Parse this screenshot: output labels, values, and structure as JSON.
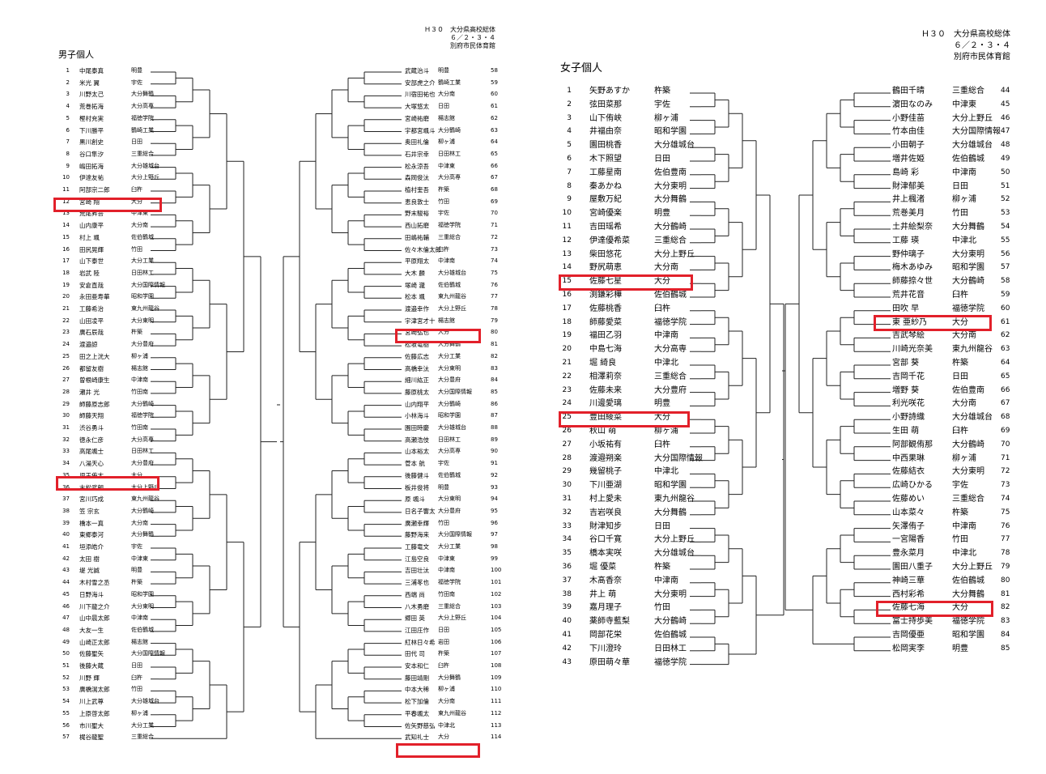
{
  "doc": {
    "header_left": [
      "Ｈ３０　大分県高校総体",
      "６／２・３・４",
      "別府市民体育館"
    ],
    "header_right": [
      "Ｈ３０　大分県高校総体",
      "６／２・３・４",
      "別府市民体育館"
    ],
    "men_title": "男子個人",
    "women_title": "女子個人"
  },
  "men": [
    {
      "n": "1",
      "name": "中尾泰真",
      "school": "明豊"
    },
    {
      "n": "2",
      "name": "米光 翼",
      "school": "宇佐"
    },
    {
      "n": "3",
      "name": "川野太己",
      "school": "大分舞鶴"
    },
    {
      "n": "4",
      "name": "荒巻拓海",
      "school": "大分高専"
    },
    {
      "n": "5",
      "name": "樫村充実",
      "school": "福徳学院"
    },
    {
      "n": "6",
      "name": "下川勝平",
      "school": "鶴崎工業"
    },
    {
      "n": "7",
      "name": "黒川創史",
      "school": "日田"
    },
    {
      "n": "8",
      "name": "谷口隼汐",
      "school": "三重総合"
    },
    {
      "n": "9",
      "name": "嶋田拓海",
      "school": "大分雄城台"
    },
    {
      "n": "10",
      "name": "伊達友祐",
      "school": "大分上野丘"
    },
    {
      "n": "11",
      "name": "阿部宗二郎",
      "school": "臼杵"
    },
    {
      "n": "12",
      "name": "宮崎 翔",
      "school": "大分"
    },
    {
      "n": "13",
      "name": "荒尾昇吾",
      "school": "中津東"
    },
    {
      "n": "14",
      "name": "山内康平",
      "school": "大分南"
    },
    {
      "n": "15",
      "name": "村上 颯",
      "school": "佐伯鶴城"
    },
    {
      "n": "16",
      "name": "田尻晃輝",
      "school": "竹田"
    },
    {
      "n": "17",
      "name": "山下泰世",
      "school": "大分工業"
    },
    {
      "n": "18",
      "name": "岩武 陸",
      "school": "日田林工"
    },
    {
      "n": "19",
      "name": "安倉直哉",
      "school": "大分国際情報"
    },
    {
      "n": "20",
      "name": "永田亜寿華",
      "school": "昭和学園"
    },
    {
      "n": "21",
      "name": "工藤希治",
      "school": "東九州龍谷"
    },
    {
      "n": "22",
      "name": "山田凌平",
      "school": "大分東明"
    },
    {
      "n": "23",
      "name": "廣石辰哉",
      "school": "杵築"
    },
    {
      "n": "24",
      "name": "渡邉諒",
      "school": "大分豊府"
    },
    {
      "n": "25",
      "name": "田之上洸大",
      "school": "柳ヶ浦"
    },
    {
      "n": "26",
      "name": "都留友樹",
      "school": "楊志館"
    },
    {
      "n": "27",
      "name": "曽根崎康生",
      "school": "中津南"
    },
    {
      "n": "28",
      "name": "瀬井 光",
      "school": "竹田南"
    },
    {
      "n": "29",
      "name": "師藤原志郎",
      "school": "大分鶴崎"
    },
    {
      "n": "30",
      "name": "師藤天翔",
      "school": "福徳学院"
    },
    {
      "n": "31",
      "name": "渋谷勇斗",
      "school": "竹田南"
    },
    {
      "n": "32",
      "name": "徳永仁彦",
      "school": "大分高専"
    },
    {
      "n": "33",
      "name": "高尾颯士",
      "school": "日田林工"
    },
    {
      "n": "34",
      "name": "八湯天心",
      "school": "大分豊府"
    },
    {
      "n": "35",
      "name": "児玉侑太",
      "school": "大分"
    },
    {
      "n": "36",
      "name": "末松武朗",
      "school": "大分上野丘"
    },
    {
      "n": "37",
      "name": "宮川巧成",
      "school": "東九州龍谷"
    },
    {
      "n": "38",
      "name": "笠 宗玄",
      "school": "大分鶴崎"
    },
    {
      "n": "39",
      "name": "橋本一真",
      "school": "大分南"
    },
    {
      "n": "40",
      "name": "東郷泰河",
      "school": "大分舞鶴"
    },
    {
      "n": "41",
      "name": "垣添皓介",
      "school": "宇佐"
    },
    {
      "n": "42",
      "name": "太田 樹",
      "school": "中津東"
    },
    {
      "n": "43",
      "name": "堤 光誠",
      "school": "明豊"
    },
    {
      "n": "44",
      "name": "木村雪之丞",
      "school": "杵築"
    },
    {
      "n": "45",
      "name": "日野海斗",
      "school": "昭和学園"
    },
    {
      "n": "46",
      "name": "川下龍之介",
      "school": "大分東明"
    },
    {
      "n": "47",
      "name": "山中晨太郎",
      "school": "中津南"
    },
    {
      "n": "48",
      "name": "大友一生",
      "school": "佐伯鶴城"
    },
    {
      "n": "49",
      "name": "山崎正太郎",
      "school": "楊志館"
    },
    {
      "n": "50",
      "name": "佐藤聖矢",
      "school": "大分国際情報"
    },
    {
      "n": "51",
      "name": "後藤大蔵",
      "school": "日田"
    },
    {
      "n": "52",
      "name": "川野 輝",
      "school": "臼杵"
    },
    {
      "n": "53",
      "name": "廣橋滉太郎",
      "school": "竹田"
    },
    {
      "n": "54",
      "name": "川上武尊",
      "school": "大分雄城台"
    },
    {
      "n": "55",
      "name": "上原啓太郎",
      "school": "柳ヶ浦"
    },
    {
      "n": "56",
      "name": "市川聖大",
      "school": "大分工業"
    },
    {
      "n": "57",
      "name": "梶谷龍聖",
      "school": "三重総合"
    },
    {
      "n": "58",
      "name": "武蔵治斗",
      "school": "明豊"
    },
    {
      "n": "59",
      "name": "安部虎之介",
      "school": "鶴崎工業"
    },
    {
      "n": "60",
      "name": "川宿田祐也",
      "school": "大分南"
    },
    {
      "n": "61",
      "name": "大塚悠太",
      "school": "日田"
    },
    {
      "n": "62",
      "name": "宮崎祐磨",
      "school": "楊志館"
    },
    {
      "n": "63",
      "name": "宇都宮颯斗",
      "school": "大分鶴崎"
    },
    {
      "n": "64",
      "name": "奥田礼倫",
      "school": "柳ヶ浦"
    },
    {
      "n": "65",
      "name": "石井宗幸",
      "school": "日田林工"
    },
    {
      "n": "66",
      "name": "松永涼吾",
      "school": "中津東"
    },
    {
      "n": "67",
      "name": "森岡俊汰",
      "school": "大分高専"
    },
    {
      "n": "68",
      "name": "植村奎吾",
      "school": "杵築"
    },
    {
      "n": "69",
      "name": "恵良敦士",
      "school": "竹田"
    },
    {
      "n": "70",
      "name": "野末駿裕",
      "school": "宇佐"
    },
    {
      "n": "71",
      "name": "西山拓磨",
      "school": "福徳学院"
    },
    {
      "n": "72",
      "name": "田嶋祐輔",
      "school": "三重総合"
    },
    {
      "n": "73",
      "name": "佐々木倫太郎",
      "school": "臼杵"
    },
    {
      "n": "74",
      "name": "平原翔太",
      "school": "中津南"
    },
    {
      "n": "75",
      "name": "大木 麟",
      "school": "大分雄城台"
    },
    {
      "n": "76",
      "name": "塚崎 瀧",
      "school": "佐伯鶴城"
    },
    {
      "n": "77",
      "name": "松本 颯",
      "school": "東九州龍谷"
    },
    {
      "n": "78",
      "name": "渡邉幸作",
      "school": "大分上野丘"
    },
    {
      "n": "79",
      "name": "宇津宮才十",
      "school": "楊志館"
    },
    {
      "n": "80",
      "name": "宮崎弘也",
      "school": "大分"
    },
    {
      "n": "81",
      "name": "松坂竜樹",
      "school": "大分舞鶴"
    },
    {
      "n": "82",
      "name": "佐藤広志",
      "school": "大分工業"
    },
    {
      "n": "83",
      "name": "高橋幸汰",
      "school": "大分東明"
    },
    {
      "n": "84",
      "name": "細川紘正",
      "school": "大分豊府"
    },
    {
      "n": "85",
      "name": "藤原桃太",
      "school": "大分国際情報"
    },
    {
      "n": "86",
      "name": "山内翔平",
      "school": "大分鶴崎"
    },
    {
      "n": "87",
      "name": "小林海斗",
      "school": "昭和学園"
    },
    {
      "n": "88",
      "name": "園田時慶",
      "school": "大分雄城台"
    },
    {
      "n": "89",
      "name": "高瀬浩伎",
      "school": "日田林工"
    },
    {
      "n": "90",
      "name": "山本裕太",
      "school": "大分高専"
    },
    {
      "n": "91",
      "name": "菅本 航",
      "school": "宇佐"
    },
    {
      "n": "92",
      "name": "後藤健斗",
      "school": "佐伯鶴城"
    },
    {
      "n": "93",
      "name": "板井俊将",
      "school": "明豊"
    },
    {
      "n": "94",
      "name": "原 颯斗",
      "school": "大分東明"
    },
    {
      "n": "95",
      "name": "日名子響太",
      "school": "大分豊府"
    },
    {
      "n": "96",
      "name": "廣瀬幸輝",
      "school": "竹田"
    },
    {
      "n": "97",
      "name": "藤野海来",
      "school": "大分国際情報"
    },
    {
      "n": "98",
      "name": "工藤竜文",
      "school": "大分工業"
    },
    {
      "n": "99",
      "name": "江島空良",
      "school": "中津東"
    },
    {
      "n": "100",
      "name": "吉田壮汰",
      "school": "中津南"
    },
    {
      "n": "101",
      "name": "三浦苳也",
      "school": "福徳学院"
    },
    {
      "n": "102",
      "name": "西端 尚",
      "school": "竹田南"
    },
    {
      "n": "103",
      "name": "八木勇磨",
      "school": "三重総合"
    },
    {
      "n": "104",
      "name": "郷田 英",
      "school": "大分上野丘"
    },
    {
      "n": "105",
      "name": "江田庄作",
      "school": "日田"
    },
    {
      "n": "106",
      "name": "紅林日々希",
      "school": "岩田"
    },
    {
      "n": "107",
      "name": "田代 司",
      "school": "杵築"
    },
    {
      "n": "108",
      "name": "安本和仁",
      "school": "臼杵"
    },
    {
      "n": "109",
      "name": "藤田靖剛",
      "school": "大分舞鶴"
    },
    {
      "n": "110",
      "name": "中本大稀",
      "school": "柳ヶ浦"
    },
    {
      "n": "111",
      "name": "松下加倫",
      "school": "大分南"
    },
    {
      "n": "112",
      "name": "平春颯太",
      "school": "東九州龍谷"
    },
    {
      "n": "113",
      "name": "佐矢野慈弘",
      "school": "中津北"
    },
    {
      "n": "114",
      "name": "武知礼士",
      "school": "大分"
    }
  ],
  "women": [
    {
      "n": "1",
      "name": "矢野あすか",
      "school": "杵築"
    },
    {
      "n": "2",
      "name": "弦田菜那",
      "school": "宇佐"
    },
    {
      "n": "3",
      "name": "山下侑峡",
      "school": "柳ヶ浦"
    },
    {
      "n": "4",
      "name": "井福由奈",
      "school": "昭和学園"
    },
    {
      "n": "5",
      "name": "園田桃香",
      "school": "大分雄城台"
    },
    {
      "n": "6",
      "name": "木下照望",
      "school": "日田"
    },
    {
      "n": "7",
      "name": "工藤星南",
      "school": "佐伯豊南"
    },
    {
      "n": "8",
      "name": "秦あかね",
      "school": "大分東明"
    },
    {
      "n": "9",
      "name": "屋敷万紀",
      "school": "大分舞鶴"
    },
    {
      "n": "10",
      "name": "宮崎優楽",
      "school": "明豊"
    },
    {
      "n": "11",
      "name": "吉田瑶希",
      "school": "大分鶴崎"
    },
    {
      "n": "12",
      "name": "伊達優希菜",
      "school": "三重総合"
    },
    {
      "n": "13",
      "name": "柴田悠花",
      "school": "大分上野丘"
    },
    {
      "n": "14",
      "name": "野尻萌恵",
      "school": "大分南"
    },
    {
      "n": "15",
      "name": "佐藤七星",
      "school": "大分"
    },
    {
      "n": "16",
      "name": "渕鎌彩樺",
      "school": "佐伯鶴城"
    },
    {
      "n": "17",
      "name": "佐藤桃香",
      "school": "臼杵"
    },
    {
      "n": "18",
      "name": "師藤愛菜",
      "school": "福徳学院"
    },
    {
      "n": "19",
      "name": "福田乙羽",
      "school": "中津南"
    },
    {
      "n": "20",
      "name": "中島七海",
      "school": "大分高専"
    },
    {
      "n": "21",
      "name": "堀 綺良",
      "school": "中津北"
    },
    {
      "n": "22",
      "name": "相澤莉奈",
      "school": "三重総合"
    },
    {
      "n": "23",
      "name": "佐藤未来",
      "school": "大分豊府"
    },
    {
      "n": "24",
      "name": "川邊愛璃",
      "school": "明豊"
    },
    {
      "n": "25",
      "name": "豊田綾菜",
      "school": "大分"
    },
    {
      "n": "26",
      "name": "秋山 萌",
      "school": "柳ヶ浦"
    },
    {
      "n": "27",
      "name": "小坂祐有",
      "school": "臼杵"
    },
    {
      "n": "28",
      "name": "渡邉朔楽",
      "school": "大分国際情報"
    },
    {
      "n": "29",
      "name": "幾留桃子",
      "school": "中津北"
    },
    {
      "n": "30",
      "name": "下川亜湖",
      "school": "昭和学園"
    },
    {
      "n": "31",
      "name": "村上愛未",
      "school": "東九州龍谷"
    },
    {
      "n": "32",
      "name": "吉岩咲良",
      "school": "大分舞鶴"
    },
    {
      "n": "33",
      "name": "財津知步",
      "school": "日田"
    },
    {
      "n": "34",
      "name": "谷口千寛",
      "school": "大分上野丘"
    },
    {
      "n": "35",
      "name": "橋本実咲",
      "school": "大分雄城台"
    },
    {
      "n": "36",
      "name": "堀 優菜",
      "school": "杵築"
    },
    {
      "n": "37",
      "name": "木髙香奈",
      "school": "中津南"
    },
    {
      "n": "38",
      "name": "井上 萌",
      "school": "大分東明"
    },
    {
      "n": "39",
      "name": "嘉月理子",
      "school": "竹田"
    },
    {
      "n": "40",
      "name": "薬師寺藍梨",
      "school": "大分鶴崎"
    },
    {
      "n": "41",
      "name": "岡部花栄",
      "school": "佐伯鶴城"
    },
    {
      "n": "42",
      "name": "下川澄玲",
      "school": "日田林工"
    },
    {
      "n": "43",
      "name": "原田萌々華",
      "school": "福徳学院"
    },
    {
      "n": "44",
      "name": "鶴田千晴",
      "school": "三重総合"
    },
    {
      "n": "45",
      "name": "濵田なのみ",
      "school": "中津東"
    },
    {
      "n": "46",
      "name": "小野佳苗",
      "school": "大分上野丘"
    },
    {
      "n": "47",
      "name": "竹本由佳",
      "school": "大分国際情報"
    },
    {
      "n": "48",
      "name": "小田朝子",
      "school": "大分雄城台"
    },
    {
      "n": "49",
      "name": "増井佐姫",
      "school": "佐伯鶴城"
    },
    {
      "n": "50",
      "name": "島崎 彩",
      "school": "中津南"
    },
    {
      "n": "51",
      "name": "財津郁美",
      "school": "日田"
    },
    {
      "n": "52",
      "name": "井上楓渚",
      "school": "柳ヶ浦"
    },
    {
      "n": "53",
      "name": "荒巻美月",
      "school": "竹田"
    },
    {
      "n": "54",
      "name": "土井絵梨奈",
      "school": "大分舞鶴"
    },
    {
      "n": "55",
      "name": "工藤 瑛",
      "school": "中津北"
    },
    {
      "n": "56",
      "name": "野仲璃子",
      "school": "大分東明"
    },
    {
      "n": "57",
      "name": "梅木あゆみ",
      "school": "昭和学園"
    },
    {
      "n": "58",
      "name": "師藤捺々世",
      "school": "大分鶴崎"
    },
    {
      "n": "59",
      "name": "荒井花音",
      "school": "臼杵"
    },
    {
      "n": "60",
      "name": "田吹 早",
      "school": "福徳学院"
    },
    {
      "n": "61",
      "name": "東 亜紗乃",
      "school": "大分"
    },
    {
      "n": "62",
      "name": "吉武琴絵",
      "school": "大分南"
    },
    {
      "n": "63",
      "name": "川崎光奈美",
      "school": "東九州龍谷"
    },
    {
      "n": "64",
      "name": "宮部 葵",
      "school": "杵築"
    },
    {
      "n": "65",
      "name": "吉岡千花",
      "school": "日田"
    },
    {
      "n": "66",
      "name": "増野 葵",
      "school": "佐伯豊南"
    },
    {
      "n": "67",
      "name": "利光咲花",
      "school": "大分南"
    },
    {
      "n": "68",
      "name": "小野詩織",
      "school": "大分雄城台"
    },
    {
      "n": "69",
      "name": "生田 萌",
      "school": "臼杵"
    },
    {
      "n": "70",
      "name": "阿部観侑那",
      "school": "大分鶴崎"
    },
    {
      "n": "71",
      "name": "中西果琳",
      "school": "柳ヶ浦"
    },
    {
      "n": "72",
      "name": "佐藤結衣",
      "school": "大分東明"
    },
    {
      "n": "73",
      "name": "広崎ひかる",
      "school": "宇佐"
    },
    {
      "n": "74",
      "name": "佐藤めい",
      "school": "三重総合"
    },
    {
      "n": "75",
      "name": "山本菜々",
      "school": "杵築"
    },
    {
      "n": "76",
      "name": "矢澤侑子",
      "school": "中津南"
    },
    {
      "n": "77",
      "name": "一宮陽香",
      "school": "竹田"
    },
    {
      "n": "78",
      "name": "豊永菜月",
      "school": "中津北"
    },
    {
      "n": "79",
      "name": "園田八重子",
      "school": "大分上野丘"
    },
    {
      "n": "80",
      "name": "神崎三華",
      "school": "佐伯鶴城"
    },
    {
      "n": "81",
      "name": "西村彩希",
      "school": "大分舞鶴"
    },
    {
      "n": "82",
      "name": "佐藤七海",
      "school": "大分"
    },
    {
      "n": "83",
      "name": "富士持歩美",
      "school": "福徳学院"
    },
    {
      "n": "84",
      "name": "吉岡優亜",
      "school": "昭和学園"
    },
    {
      "n": "85",
      "name": "松岡実李",
      "school": "明豊"
    }
  ]
}
